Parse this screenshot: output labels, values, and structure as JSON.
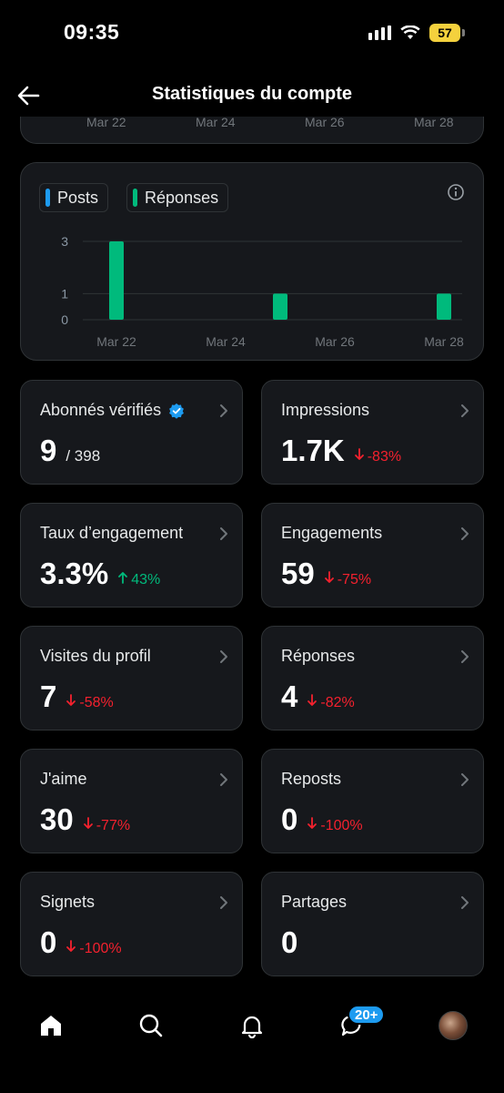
{
  "status_bar": {
    "time": "09:35",
    "battery": "57"
  },
  "header": {
    "title": "Statistiques du compte"
  },
  "top_chart_axis": [
    "Mar 22",
    "Mar 24",
    "Mar 26",
    "Mar 28"
  ],
  "chart_data": {
    "type": "bar",
    "legend": [
      {
        "name": "Posts",
        "color": "#1d9bf0"
      },
      {
        "name": "Réponses",
        "color": "#00ba7c"
      }
    ],
    "x_ticks": [
      "Mar 22",
      "Mar 24",
      "Mar 26",
      "Mar 28"
    ],
    "y_ticks": [
      0,
      1,
      3
    ],
    "ylim": [
      0,
      3
    ],
    "series": [
      {
        "name": "Posts",
        "values": [
          0,
          0,
          0
        ]
      },
      {
        "name": "Réponses",
        "values": [
          3,
          1,
          1
        ]
      }
    ],
    "bar_dates": [
      "Mar 22",
      "Mar 25",
      "Mar 28"
    ],
    "grid": true
  },
  "stats": [
    {
      "label": "Abonnés vérifiés",
      "value": "9",
      "sub": "/ 398",
      "delta": "",
      "dir": "",
      "verified": true
    },
    {
      "label": "Impressions",
      "value": "1.7K",
      "sub": "",
      "delta": "-83%",
      "dir": "down"
    },
    {
      "label": "Taux d’engagement",
      "value": "3.3%",
      "sub": "",
      "delta": "43%",
      "dir": "up"
    },
    {
      "label": "Engagements",
      "value": "59",
      "sub": "",
      "delta": "-75%",
      "dir": "down"
    },
    {
      "label": "Visites du profil",
      "value": "7",
      "sub": "",
      "delta": "-58%",
      "dir": "down"
    },
    {
      "label": "Réponses",
      "value": "4",
      "sub": "",
      "delta": "-82%",
      "dir": "down"
    },
    {
      "label": "J'aime",
      "value": "30",
      "sub": "",
      "delta": "-77%",
      "dir": "down"
    },
    {
      "label": "Reposts",
      "value": "0",
      "sub": "",
      "delta": "-100%",
      "dir": "down"
    },
    {
      "label": "Signets",
      "value": "0",
      "sub": "",
      "delta": "-100%",
      "dir": "down"
    },
    {
      "label": "Partages",
      "value": "0",
      "sub": "",
      "delta": "",
      "dir": ""
    }
  ],
  "tabbar": {
    "messages_badge": "20+"
  },
  "icons": {
    "back": "back-arrow-icon",
    "info": "info-icon",
    "home": "home-icon",
    "search": "search-icon",
    "notifications": "bell-icon",
    "messages": "messages-icon"
  }
}
